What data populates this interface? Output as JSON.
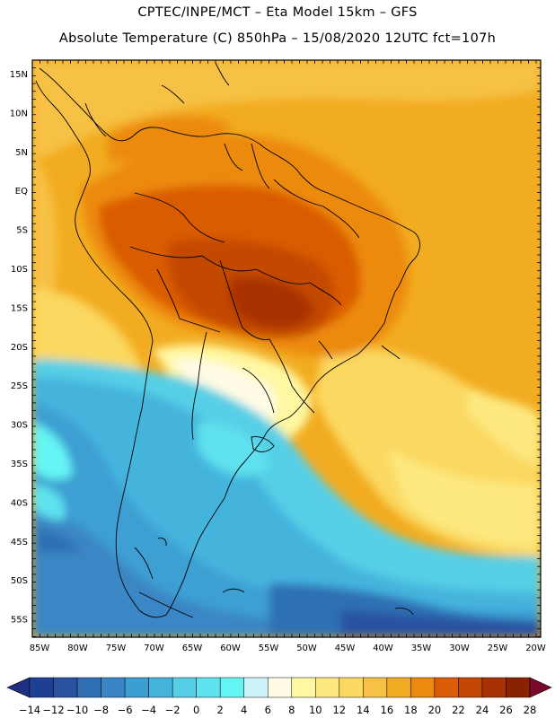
{
  "header": {
    "line1": "CPTEC/INPE/MCT –  Eta Model 15km – GFS",
    "line2": "Absolute Temperature (C) 850hPa – 15/08/2020 12UTC fct=107h"
  },
  "map": {
    "lat_labels": [
      "15N",
      "10N",
      "5N",
      "EQ",
      "5S",
      "10S",
      "15S",
      "20S",
      "25S",
      "30S",
      "35S",
      "40S",
      "45S",
      "50S",
      "55S"
    ],
    "lon_labels": [
      "85W",
      "80W",
      "75W",
      "70W",
      "65W",
      "60W",
      "55W",
      "50W",
      "45W",
      "40W",
      "35W",
      "30W",
      "25W",
      "20W"
    ]
  },
  "colorbar": {
    "labels": [
      "-14",
      "-12",
      "-10",
      "-8",
      "-6",
      "-4",
      "-2",
      "0",
      "2",
      "4",
      "6",
      "8",
      "10",
      "12",
      "14",
      "16",
      "18",
      "20",
      "22",
      "24",
      "26",
      "28"
    ],
    "colors": [
      "#1f3f94",
      "#2b51a1",
      "#2f6fb4",
      "#3a86c4",
      "#3c9fd2",
      "#45b4dd",
      "#56cfe6",
      "#5ee2ef",
      "#66f5f5",
      "#cdf3fb",
      "#fffbe4",
      "#fff7a1",
      "#fde87f",
      "#fbd860",
      "#f6c145",
      "#f2ac21",
      "#ec8a0d",
      "#da5c05",
      "#c34803",
      "#a83203",
      "#8a2202"
    ],
    "end_left": "#1f2f80",
    "end_right": "#7a0a2a"
  }
}
